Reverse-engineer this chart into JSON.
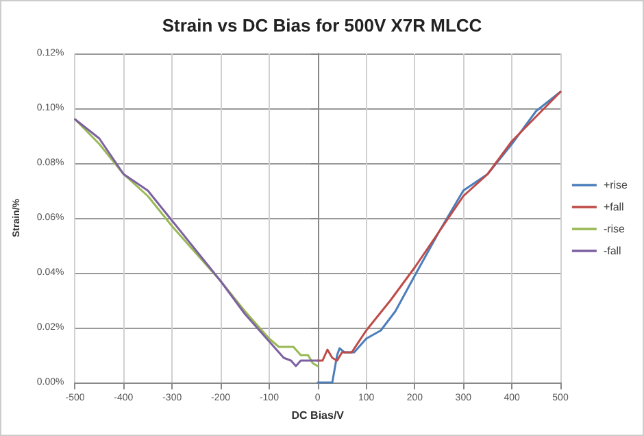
{
  "chart_data": {
    "type": "line",
    "title": "Strain vs DC Bias for 500V X7R MLCC",
    "xlabel": "DC Bias/V",
    "ylabel": "Strain/%",
    "xlim": [
      -500,
      500
    ],
    "xticks": [
      -500,
      -400,
      -300,
      -200,
      -100,
      0,
      100,
      200,
      300,
      400,
      500
    ],
    "ylim": [
      0,
      0.12
    ],
    "yticks": [
      {
        "value": 0,
        "label": "0.00%"
      },
      {
        "value": 0.02,
        "label": "0.02%"
      },
      {
        "value": 0.04,
        "label": "0.04%"
      },
      {
        "value": 0.06,
        "label": "0.06%"
      },
      {
        "value": 0.08,
        "label": "0.08%"
      },
      {
        "value": 0.1,
        "label": "0.10%"
      },
      {
        "value": 0.12,
        "label": "0.12%"
      }
    ],
    "grid": true,
    "legend": "right",
    "marker": "none",
    "line_style": "solid",
    "series": [
      {
        "name": "+rise",
        "color": "#4a7ebb",
        "x": [
          0,
          30,
          40,
          45,
          55,
          75,
          100,
          130,
          160,
          200,
          250,
          300,
          350,
          400,
          450,
          500
        ],
        "values": [
          0,
          0,
          0.01,
          0.0125,
          0.011,
          0.011,
          0.016,
          0.019,
          0.026,
          0.039,
          0.055,
          0.07,
          0.076,
          0.087,
          0.099,
          0.106
        ]
      },
      {
        "name": "+fall",
        "color": "#be4b48",
        "x": [
          0,
          10,
          20,
          30,
          40,
          50,
          70,
          100,
          150,
          200,
          250,
          300,
          350,
          400,
          450,
          500
        ],
        "values": [
          0.008,
          0.008,
          0.012,
          0.009,
          0.008,
          0.011,
          0.011,
          0.019,
          0.03,
          0.042,
          0.055,
          0.068,
          0.076,
          0.088,
          0.097,
          0.106
        ]
      },
      {
        "name": "-rise",
        "color": "#98b954",
        "x": [
          -500,
          -450,
          -400,
          -350,
          -300,
          -250,
          -200,
          -150,
          -100,
          -80,
          -50,
          -35,
          -20,
          -10,
          0
        ],
        "values": [
          0.096,
          0.087,
          0.076,
          0.068,
          0.057,
          0.047,
          0.037,
          0.026,
          0.016,
          0.013,
          0.013,
          0.01,
          0.01,
          0.007,
          0.006
        ]
      },
      {
        "name": "-fall",
        "color": "#7d60a0",
        "x": [
          -500,
          -450,
          -400,
          -350,
          -300,
          -250,
          -200,
          -150,
          -100,
          -70,
          -55,
          -45,
          -35,
          -20,
          0
        ],
        "values": [
          0.096,
          0.089,
          0.076,
          0.07,
          0.059,
          0.048,
          0.037,
          0.025,
          0.015,
          0.009,
          0.008,
          0.006,
          0.008,
          0.008,
          0.008
        ]
      }
    ]
  }
}
